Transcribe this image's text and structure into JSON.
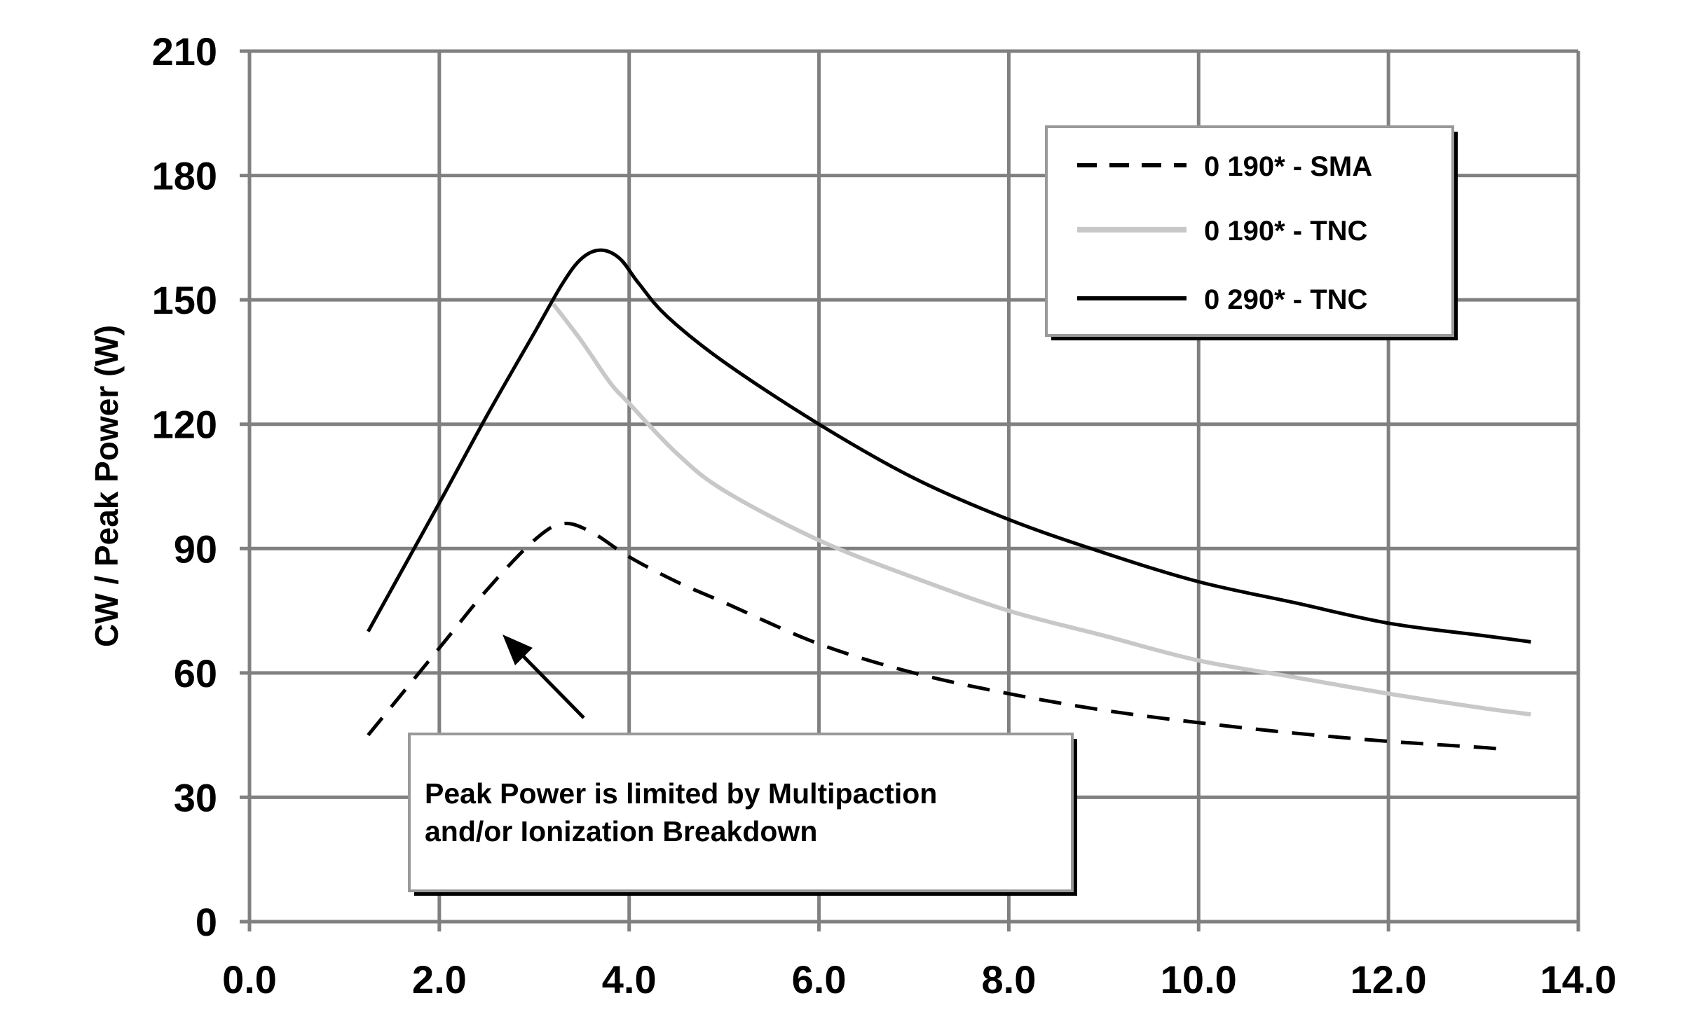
{
  "chart_data": {
    "type": "line",
    "title": "",
    "xlabel": "",
    "ylabel": "CW / Peak Power (W)",
    "xlim": [
      0,
      14
    ],
    "ylim": [
      0,
      210
    ],
    "xticks": [
      "0.0",
      "2.0",
      "4.0",
      "6.0",
      "8.0",
      "10.0",
      "12.0",
      "14.0"
    ],
    "yticks": [
      "0",
      "30",
      "60",
      "90",
      "120",
      "150",
      "180",
      "210"
    ],
    "grid": true,
    "legend_position": "top-right",
    "series": [
      {
        "name": "0 190* - SMA",
        "style": "dashed",
        "color": "#000000",
        "x": [
          1.25,
          2.0,
          2.5,
          3.0,
          3.3,
          3.6,
          4.0,
          4.5,
          5.0,
          6.0,
          7.0,
          8.0,
          9.0,
          10.0,
          11.0,
          12.0,
          13.0,
          13.2
        ],
        "y": [
          45,
          66,
          80,
          92,
          96,
          94,
          88,
          82,
          77,
          67,
          60,
          55,
          51,
          48,
          45.5,
          43.5,
          42,
          41.5
        ]
      },
      {
        "name": "0 190* - TNC",
        "style": "solid",
        "color": "#c8c8c8",
        "x": [
          3.2,
          3.5,
          3.8,
          4.0,
          4.5,
          5.0,
          6.0,
          7.0,
          8.0,
          9.0,
          10.0,
          11.0,
          12.0,
          13.0,
          13.5
        ],
        "y": [
          149,
          140,
          130,
          125,
          113,
          104,
          92,
          83,
          75,
          69,
          63,
          59,
          55,
          51.5,
          50
        ]
      },
      {
        "name": "0 290* - TNC",
        "style": "solid",
        "color": "#000000",
        "x": [
          1.25,
          2.0,
          2.5,
          3.0,
          3.3,
          3.5,
          3.7,
          3.9,
          4.1,
          4.4,
          5.0,
          6.0,
          7.0,
          8.0,
          9.0,
          10.0,
          11.0,
          12.0,
          13.0,
          13.5
        ],
        "y": [
          70,
          101,
          122,
          142,
          154,
          160,
          162,
          160,
          154,
          146,
          135,
          120,
          107,
          97,
          89,
          82,
          77,
          72,
          69,
          67.5
        ]
      }
    ],
    "annotations": [
      {
        "text_lines": [
          "Peak Power is limited by Multipaction",
          "and/or Ionization Breakdown"
        ],
        "arrow_to": [
          2.65,
          69
        ]
      }
    ]
  }
}
